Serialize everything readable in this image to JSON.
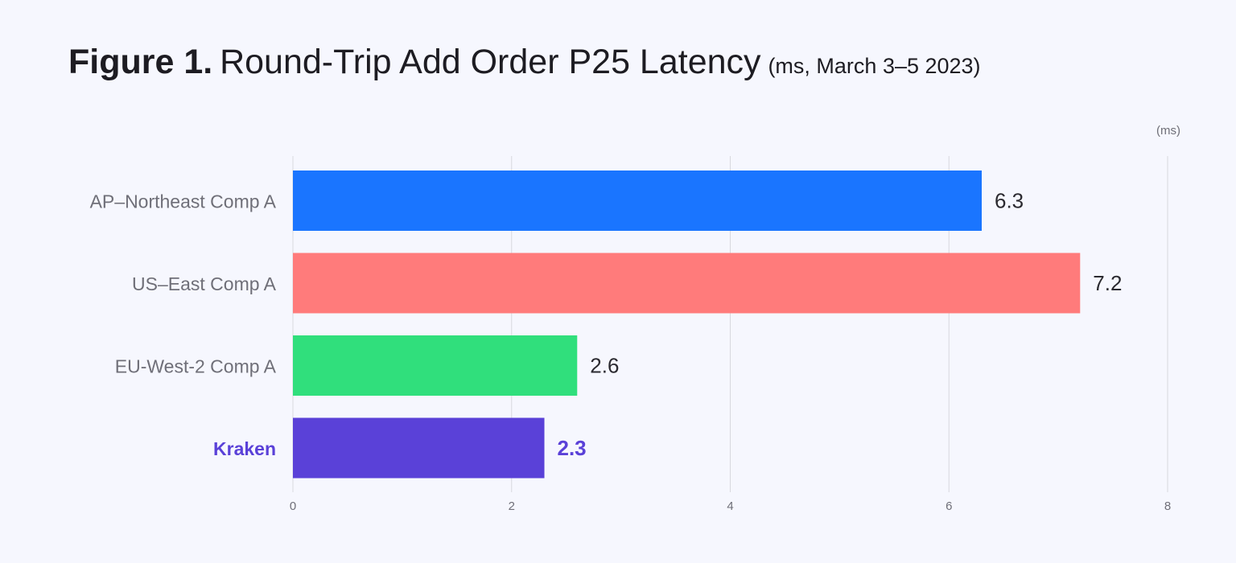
{
  "title": {
    "figure_label": "Figure 1.",
    "text": "Round-Trip Add Order P25 Latency",
    "subtitle": "(ms, March 3–5 2023)"
  },
  "colors": {
    "background": "#f6f7fe",
    "gridline": "#d8d8de",
    "label_text": "#6f6f78",
    "value_text": "#2b2a30",
    "highlight_text": "#5a41d8"
  },
  "chart_data": {
    "type": "bar",
    "orientation": "horizontal",
    "categories": [
      "AP–Northeast Comp A",
      "US–East Comp A",
      "EU-West-2 Comp A",
      "Kraken"
    ],
    "values": [
      6.3,
      7.2,
      2.6,
      2.3
    ],
    "value_labels": [
      "6.3",
      "7.2",
      "2.6",
      "2.3"
    ],
    "bar_colors": [
      "#1a75ff",
      "#ff7b7b",
      "#30df7c",
      "#5a41d8"
    ],
    "highlight_category": "Kraken",
    "unit_label": "(ms)",
    "xlim": [
      0,
      8
    ],
    "x_ticks": [
      0,
      2,
      4,
      6,
      8
    ],
    "x_tick_labels": [
      "0",
      "2",
      "4",
      "6",
      "8"
    ],
    "grid": true
  }
}
